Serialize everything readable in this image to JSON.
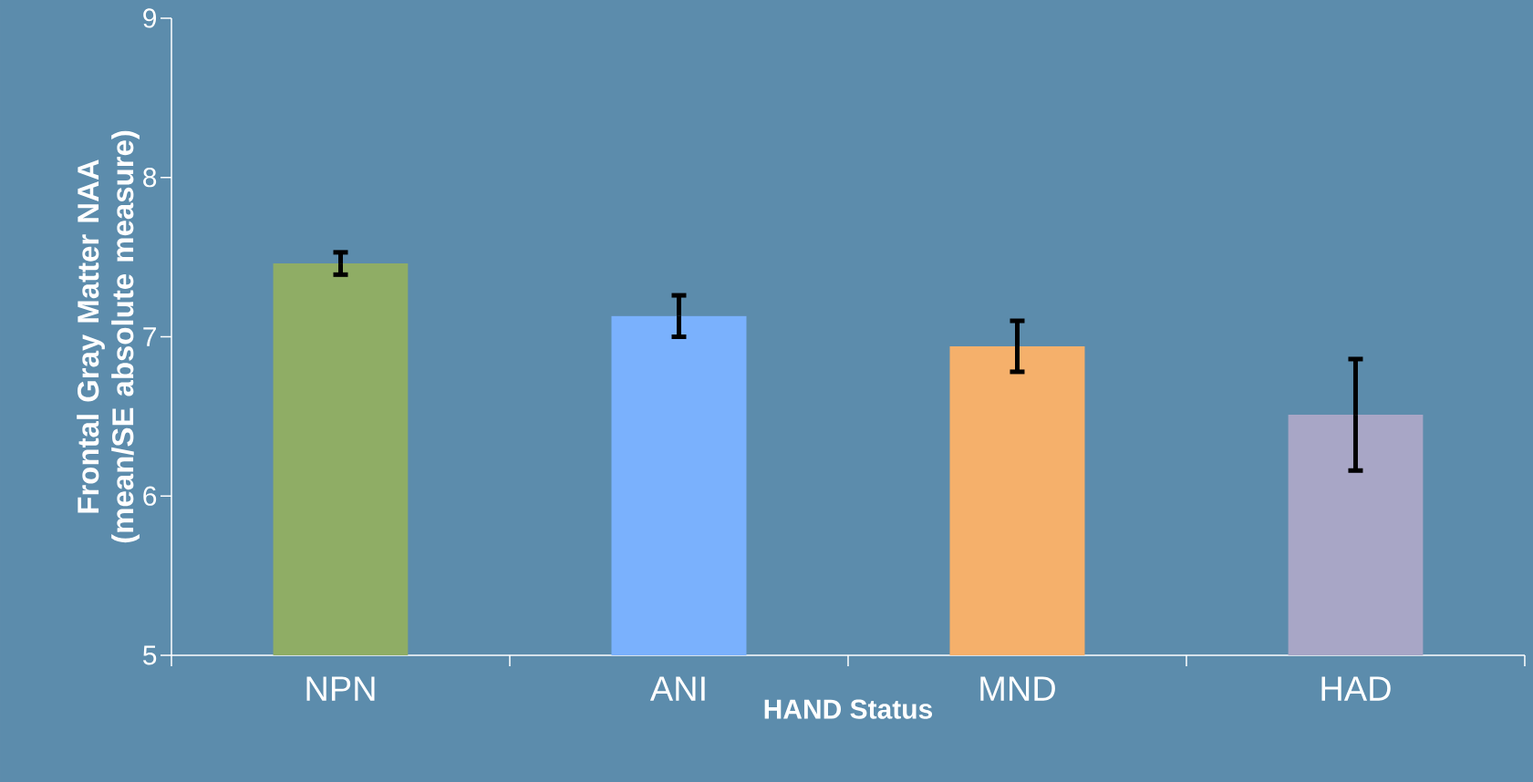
{
  "chart_data": {
    "type": "bar",
    "xlabel": "HAND Status",
    "ylabel": "Frontal Gray Matter NAA (mean/SE absolute measure)",
    "categories": [
      "NPN",
      "ANI",
      "MND",
      "HAD"
    ],
    "values": [
      7.46,
      7.13,
      6.94,
      6.51
    ],
    "errors": [
      0.07,
      0.13,
      0.16,
      0.35
    ],
    "colors": [
      "#8fad65",
      "#7ab1fd",
      "#f5b06b",
      "#a8a6c6"
    ],
    "ylim": [
      5,
      9
    ],
    "yticks": [
      5,
      6,
      7,
      8,
      9
    ],
    "grid": false
  }
}
